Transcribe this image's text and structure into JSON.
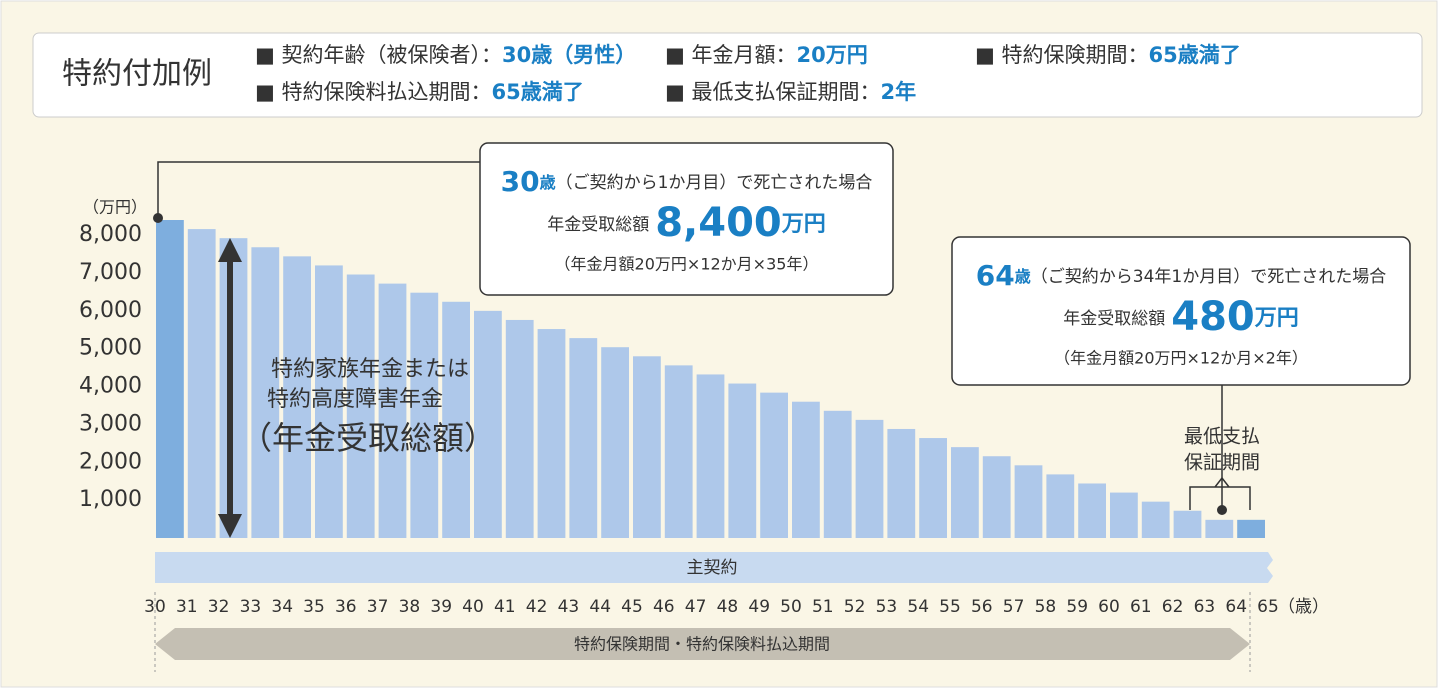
{
  "chart_data": {
    "type": "bar",
    "header": {
      "title": "特約付加例",
      "items": [
        {
          "label": "■ 契約年齢（被保険者）：",
          "value": "30歳（男性）"
        },
        {
          "label": "■ 年金月額：",
          "value": "20万円"
        },
        {
          "label": "■ 特約保険期間：",
          "value": "65歳満了"
        },
        {
          "label": "■ 特約保険料払込期間：",
          "value": "65歳満了"
        },
        {
          "label": "■ 最低支払保証期間：",
          "value": "2年"
        }
      ]
    },
    "y_unit": "（万円）",
    "x_unit": "（歳）",
    "categories": [
      30,
      31,
      32,
      33,
      34,
      35,
      36,
      37,
      38,
      39,
      40,
      41,
      42,
      43,
      44,
      45,
      46,
      47,
      48,
      49,
      50,
      51,
      52,
      53,
      54,
      55,
      56,
      57,
      58,
      59,
      60,
      61,
      62,
      63,
      64
    ],
    "values": [
      8400,
      8160,
      7920,
      7680,
      7440,
      7200,
      6960,
      6720,
      6480,
      6240,
      6000,
      5760,
      5520,
      5280,
      5040,
      4800,
      4560,
      4320,
      4080,
      3840,
      3600,
      3360,
      3120,
      2880,
      2640,
      2400,
      2160,
      1920,
      1680,
      1440,
      1200,
      960,
      720,
      480,
      480
    ],
    "colors": [
      "#7eaede",
      "#aec8ea",
      "#aec8ea",
      "#aec8ea",
      "#aec8ea",
      "#aec8ea",
      "#aec8ea",
      "#aec8ea",
      "#aec8ea",
      "#aec8ea",
      "#aec8ea",
      "#aec8ea",
      "#aec8ea",
      "#aec8ea",
      "#aec8ea",
      "#aec8ea",
      "#aec8ea",
      "#aec8ea",
      "#aec8ea",
      "#aec8ea",
      "#aec8ea",
      "#aec8ea",
      "#aec8ea",
      "#aec8ea",
      "#aec8ea",
      "#aec8ea",
      "#aec8ea",
      "#aec8ea",
      "#aec8ea",
      "#aec8ea",
      "#aec8ea",
      "#aec8ea",
      "#aec8ea",
      "#aec8ea",
      "#7eaede"
    ],
    "xticks": [
      30,
      31,
      32,
      33,
      34,
      35,
      36,
      37,
      38,
      39,
      40,
      41,
      42,
      43,
      44,
      45,
      46,
      47,
      48,
      49,
      50,
      51,
      52,
      53,
      54,
      55,
      56,
      57,
      58,
      59,
      60,
      61,
      62,
      63,
      64,
      65
    ],
    "ylim": [
      0,
      8400
    ],
    "yticks": [
      {
        "value": 1000,
        "label": "1,000"
      },
      {
        "value": 2000,
        "label": "2,000"
      },
      {
        "value": 3000,
        "label": "3,000"
      },
      {
        "value": 4000,
        "label": "4,000"
      },
      {
        "value": 5000,
        "label": "5,000"
      },
      {
        "value": 6000,
        "label": "6,000"
      },
      {
        "value": 7000,
        "label": "7,000"
      },
      {
        "value": 8000,
        "label": "8,000"
      }
    ],
    "arrow_label": [
      "特約家族年金または",
      "特約高度障害年金",
      "（年金受取総額）"
    ],
    "callouts": [
      {
        "age": "30",
        "age_unit": "歳",
        "text": "（ご契約から1か月目）で死亡された場合",
        "label": "年金受取総額",
        "amount": "8,400",
        "amount_unit": "万円",
        "formula": "（年金月額20万円×12か月×35年）"
      },
      {
        "age": "64",
        "age_unit": "歳",
        "text": "（ご契約から34年1か月目）で死亡された場合",
        "label": "年金受取総額",
        "amount": "480",
        "amount_unit": "万円",
        "formula": "（年金月額20万円×12か月×2年）"
      }
    ],
    "guarantee_label": [
      "最低支払",
      "保証期間"
    ],
    "main_contract": "主契約",
    "period_label": "特約保険期間・特約保険料払込期間"
  }
}
